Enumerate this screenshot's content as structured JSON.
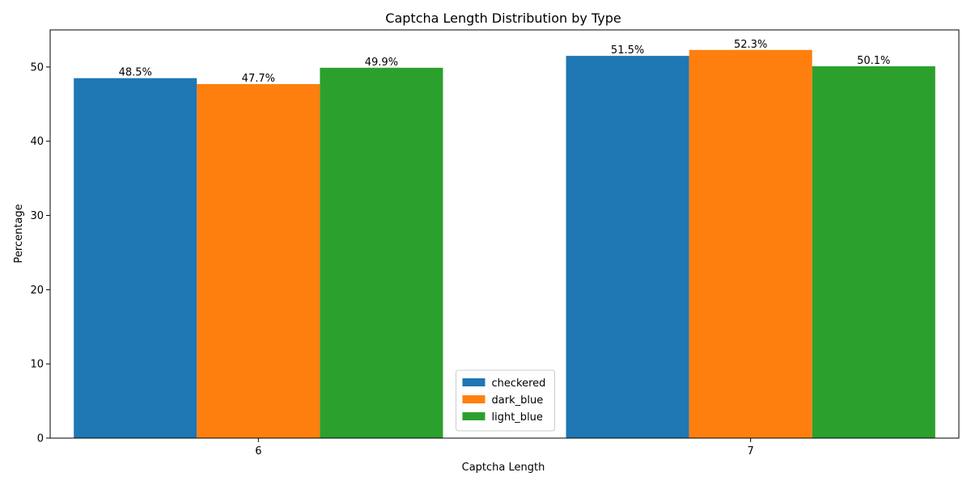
{
  "chart_data": {
    "type": "bar",
    "title": "Captcha Length Distribution by Type",
    "xlabel": "Captcha Length",
    "ylabel": "Percentage",
    "categories": [
      "6",
      "7"
    ],
    "series": [
      {
        "name": "checkered",
        "color": "#1f77b4",
        "values": [
          48.5,
          51.5
        ],
        "labels": [
          "48.5%",
          "51.5%"
        ]
      },
      {
        "name": "dark_blue",
        "color": "#ff7f0e",
        "values": [
          47.7,
          52.3
        ],
        "labels": [
          "47.7%",
          "52.3%"
        ]
      },
      {
        "name": "light_blue",
        "color": "#2ca02c",
        "values": [
          49.9,
          50.1
        ],
        "labels": [
          "49.9%",
          "50.1%"
        ]
      }
    ],
    "ylim": [
      0,
      55
    ],
    "yticks": [
      0,
      10,
      20,
      30,
      40,
      50
    ],
    "grid": false,
    "legend_position": "bottom-center"
  }
}
